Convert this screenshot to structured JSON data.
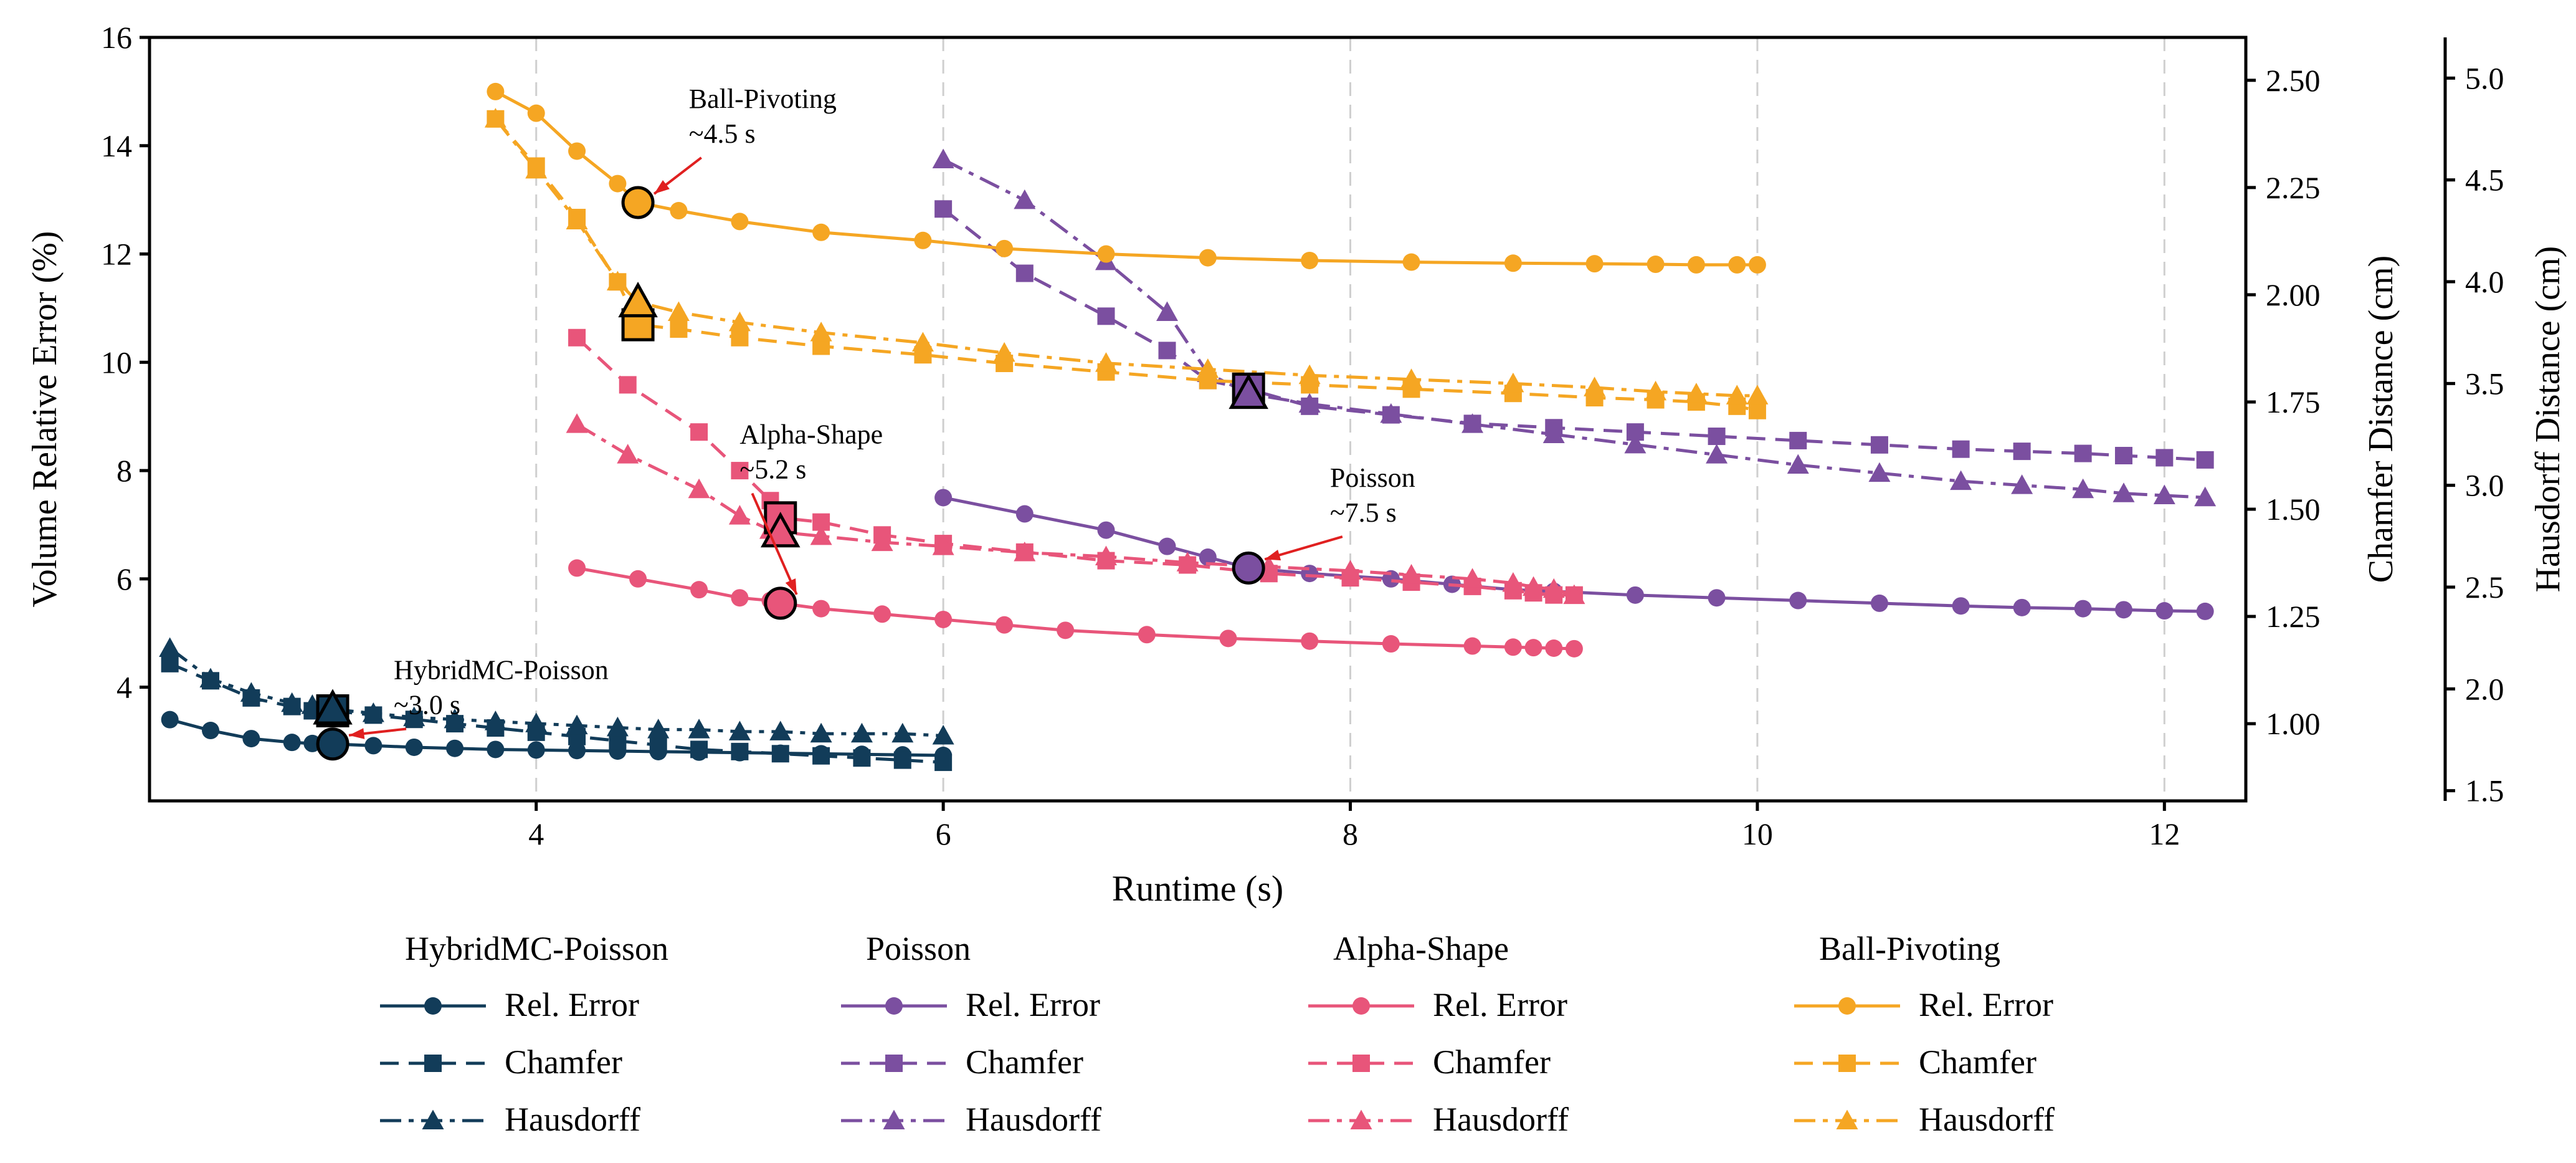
{
  "chart_data": {
    "type": "line",
    "xlabel": "Runtime (s)",
    "ylabel_left": "Volume Relative Error (%)",
    "ylabel_right1": "Chamfer Distance (cm)",
    "ylabel_right2": "Hausdorff Distance (cm)",
    "xlim": [
      2.1,
      12.4
    ],
    "ylim_left": [
      1.9,
      16
    ],
    "ylim_right1": [
      0.82,
      2.6
    ],
    "ylim_right2": [
      1.45,
      5.2
    ],
    "xticks": [
      4,
      6,
      8,
      10,
      12
    ],
    "yticks_left": [
      4,
      6,
      8,
      10,
      12,
      14,
      16
    ],
    "yticks_right1": [
      "1.00",
      "1.25",
      "1.50",
      "1.75",
      "2.00",
      "2.25",
      "2.50"
    ],
    "yticks_right2": [
      "1.5",
      "2.0",
      "2.5",
      "3.0",
      "3.5",
      "4.0",
      "4.5",
      "5.0"
    ],
    "methods": [
      {
        "name": "HybridMC-Poisson",
        "color": "#123c59",
        "rel_error": {
          "x": [
            2.2,
            2.4,
            2.6,
            2.8,
            2.9,
            3.0,
            3.2,
            3.4,
            3.6,
            3.8,
            4.0,
            4.2,
            4.4,
            4.6,
            4.8,
            5.0,
            5.2,
            5.4,
            5.6,
            5.8,
            6.0
          ],
          "y": [
            3.4,
            3.2,
            3.05,
            2.98,
            2.96,
            2.95,
            2.92,
            2.89,
            2.87,
            2.85,
            2.84,
            2.83,
            2.82,
            2.81,
            2.8,
            2.79,
            2.78,
            2.77,
            2.76,
            2.75,
            2.74
          ]
        },
        "chamfer": {
          "x": [
            2.2,
            2.4,
            2.6,
            2.8,
            2.9,
            3.0,
            3.2,
            3.4,
            3.6,
            3.8,
            4.0,
            4.2,
            4.4,
            4.6,
            4.8,
            5.0,
            5.2,
            5.4,
            5.6,
            5.8,
            6.0
          ],
          "y": [
            1.14,
            1.1,
            1.06,
            1.04,
            1.03,
            1.03,
            1.02,
            1.01,
            1.0,
            0.99,
            0.98,
            0.97,
            0.96,
            0.95,
            0.94,
            0.935,
            0.93,
            0.925,
            0.92,
            0.915,
            0.91
          ]
        },
        "hausdorff": {
          "x": [
            2.2,
            2.4,
            2.6,
            2.8,
            2.9,
            3.0,
            3.2,
            3.4,
            3.6,
            3.8,
            4.0,
            4.2,
            4.4,
            4.6,
            4.8,
            5.0,
            5.2,
            5.4,
            5.6,
            5.8,
            6.0
          ],
          "y": [
            2.2,
            2.05,
            1.98,
            1.93,
            1.92,
            1.9,
            1.88,
            1.86,
            1.85,
            1.84,
            1.83,
            1.82,
            1.81,
            1.8,
            1.8,
            1.79,
            1.79,
            1.78,
            1.78,
            1.78,
            1.77
          ]
        },
        "marker": {
          "x": 3.0,
          "rel": 2.95,
          "chamfer": 1.03,
          "hausdorff": 1.9
        },
        "annotation": {
          "line1": "HybridMC-Poisson",
          "line2": "~3.0 s",
          "tx": 3.3,
          "ty": 4.15
        }
      },
      {
        "name": "Poisson",
        "color": "#7b4fa0",
        "rel_error": {
          "x": [
            6.0,
            6.4,
            6.8,
            7.1,
            7.3,
            7.5,
            7.8,
            8.0,
            8.2,
            8.5,
            8.8,
            9.0,
            9.4,
            9.8,
            10.2,
            10.6,
            11.0,
            11.3,
            11.6,
            11.8,
            12.0,
            12.2
          ],
          "y": [
            7.5,
            7.2,
            6.9,
            6.6,
            6.4,
            6.2,
            6.1,
            6.05,
            6.0,
            5.9,
            5.8,
            5.77,
            5.7,
            5.65,
            5.6,
            5.55,
            5.5,
            5.47,
            5.45,
            5.43,
            5.41,
            5.4
          ]
        },
        "chamfer": {
          "x": [
            6.0,
            6.4,
            6.8,
            7.1,
            7.3,
            7.5,
            7.8,
            8.2,
            8.6,
            9.0,
            9.4,
            9.8,
            10.2,
            10.6,
            11.0,
            11.3,
            11.6,
            11.8,
            12.0,
            12.2
          ],
          "y": [
            2.2,
            2.05,
            1.95,
            1.87,
            1.8,
            1.78,
            1.74,
            1.72,
            1.7,
            1.69,
            1.68,
            1.67,
            1.66,
            1.65,
            1.64,
            1.635,
            1.63,
            1.625,
            1.62,
            1.615
          ]
        },
        "hausdorff": {
          "x": [
            6.0,
            6.4,
            6.8,
            7.1,
            7.3,
            7.5,
            7.8,
            8.2,
            8.6,
            9.0,
            9.4,
            9.8,
            10.2,
            10.6,
            11.0,
            11.3,
            11.6,
            11.8,
            12.0,
            12.2
          ],
          "y": [
            4.6,
            4.4,
            4.1,
            3.85,
            3.55,
            3.45,
            3.4,
            3.35,
            3.3,
            3.25,
            3.2,
            3.15,
            3.1,
            3.06,
            3.02,
            3.0,
            2.98,
            2.96,
            2.95,
            2.94
          ]
        },
        "marker": {
          "x": 7.5,
          "rel": 6.2,
          "chamfer": 1.78,
          "hausdorff": 3.45
        },
        "annotation": {
          "line1": "Poisson",
          "line2": "~7.5 s",
          "tx": 7.9,
          "ty": 7.7
        }
      },
      {
        "name": "Alpha-Shape",
        "color": "#e8557a",
        "rel_error": {
          "x": [
            4.2,
            4.5,
            4.8,
            5.0,
            5.15,
            5.2,
            5.4,
            5.7,
            6.0,
            6.3,
            6.6,
            7.0,
            7.4,
            7.8,
            8.2,
            8.6,
            8.8,
            8.9,
            9.0,
            9.1
          ],
          "y": [
            6.2,
            6.0,
            5.8,
            5.65,
            5.6,
            5.55,
            5.45,
            5.35,
            5.25,
            5.15,
            5.05,
            4.97,
            4.9,
            4.85,
            4.8,
            4.76,
            4.74,
            4.73,
            4.72,
            4.71
          ]
        },
        "chamfer": {
          "x": [
            4.2,
            4.45,
            4.8,
            5.0,
            5.15,
            5.2,
            5.4,
            5.7,
            6.0,
            6.4,
            6.8,
            7.2,
            7.6,
            8.0,
            8.3,
            8.6,
            8.8,
            8.9,
            9.0,
            9.1
          ],
          "y": [
            1.9,
            1.79,
            1.68,
            1.59,
            1.52,
            1.48,
            1.47,
            1.44,
            1.42,
            1.4,
            1.38,
            1.37,
            1.35,
            1.34,
            1.33,
            1.32,
            1.31,
            1.305,
            1.3,
            1.3
          ]
        },
        "hausdorff": {
          "x": [
            4.2,
            4.45,
            4.8,
            5.0,
            5.15,
            5.2,
            5.4,
            5.7,
            6.0,
            6.4,
            6.8,
            7.2,
            7.6,
            8.0,
            8.3,
            8.6,
            8.8,
            8.9,
            9.0,
            9.1
          ],
          "y": [
            3.3,
            3.15,
            2.98,
            2.85,
            2.78,
            2.77,
            2.75,
            2.72,
            2.7,
            2.67,
            2.65,
            2.62,
            2.6,
            2.58,
            2.56,
            2.54,
            2.52,
            2.5,
            2.49,
            2.46
          ]
        },
        "marker": {
          "x": 5.2,
          "rel": 5.55,
          "chamfer": 1.48,
          "hausdorff": 2.77
        },
        "annotation": {
          "line1": "Alpha-Shape",
          "line2": "~5.2 s",
          "tx": 5.0,
          "ty": 8.5
        }
      },
      {
        "name": "Ball-Pivoting",
        "color": "#f5a623",
        "rel_error": {
          "x": [
            3.8,
            4.0,
            4.2,
            4.4,
            4.5,
            4.7,
            5.0,
            5.4,
            5.9,
            6.3,
            6.8,
            7.3,
            7.8,
            8.3,
            8.8,
            9.2,
            9.5,
            9.7,
            9.9,
            10.0
          ],
          "y": [
            15.0,
            14.6,
            13.9,
            13.3,
            12.95,
            12.8,
            12.6,
            12.4,
            12.25,
            12.1,
            12.0,
            11.93,
            11.88,
            11.85,
            11.83,
            11.82,
            11.81,
            11.8,
            11.8,
            11.8
          ]
        },
        "chamfer": {
          "x": [
            3.8,
            4.0,
            4.2,
            4.4,
            4.5,
            4.7,
            5.0,
            5.4,
            5.9,
            6.3,
            6.8,
            7.3,
            7.8,
            8.3,
            8.8,
            9.2,
            9.5,
            9.7,
            9.9,
            10.0
          ],
          "y": [
            2.41,
            2.3,
            2.18,
            2.03,
            1.93,
            1.92,
            1.9,
            1.88,
            1.86,
            1.84,
            1.82,
            1.8,
            1.79,
            1.78,
            1.77,
            1.76,
            1.755,
            1.75,
            1.74,
            1.73
          ]
        },
        "hausdorff": {
          "x": [
            3.8,
            4.0,
            4.2,
            4.4,
            4.5,
            4.7,
            5.0,
            5.4,
            5.9,
            6.3,
            6.8,
            7.3,
            7.8,
            8.3,
            8.8,
            9.2,
            9.5,
            9.7,
            9.9,
            10.0
          ],
          "y": [
            4.8,
            4.55,
            4.3,
            4.0,
            3.9,
            3.85,
            3.8,
            3.75,
            3.7,
            3.65,
            3.6,
            3.57,
            3.54,
            3.52,
            3.5,
            3.48,
            3.46,
            3.45,
            3.44,
            3.44
          ]
        },
        "marker": {
          "x": 4.5,
          "rel": 12.95,
          "chamfer": 1.93,
          "hausdorff": 3.9
        },
        "annotation": {
          "line1": "Ball-Pivoting",
          "line2": "~4.5 s",
          "tx": 4.75,
          "ty": 14.7
        }
      }
    ],
    "legend": {
      "groups": [
        "HybridMC-Poisson",
        "Poisson",
        "Alpha-Shape",
        "Ball-Pivoting"
      ],
      "entries": [
        "Rel. Error",
        "Chamfer",
        "Hausdorff"
      ]
    }
  }
}
